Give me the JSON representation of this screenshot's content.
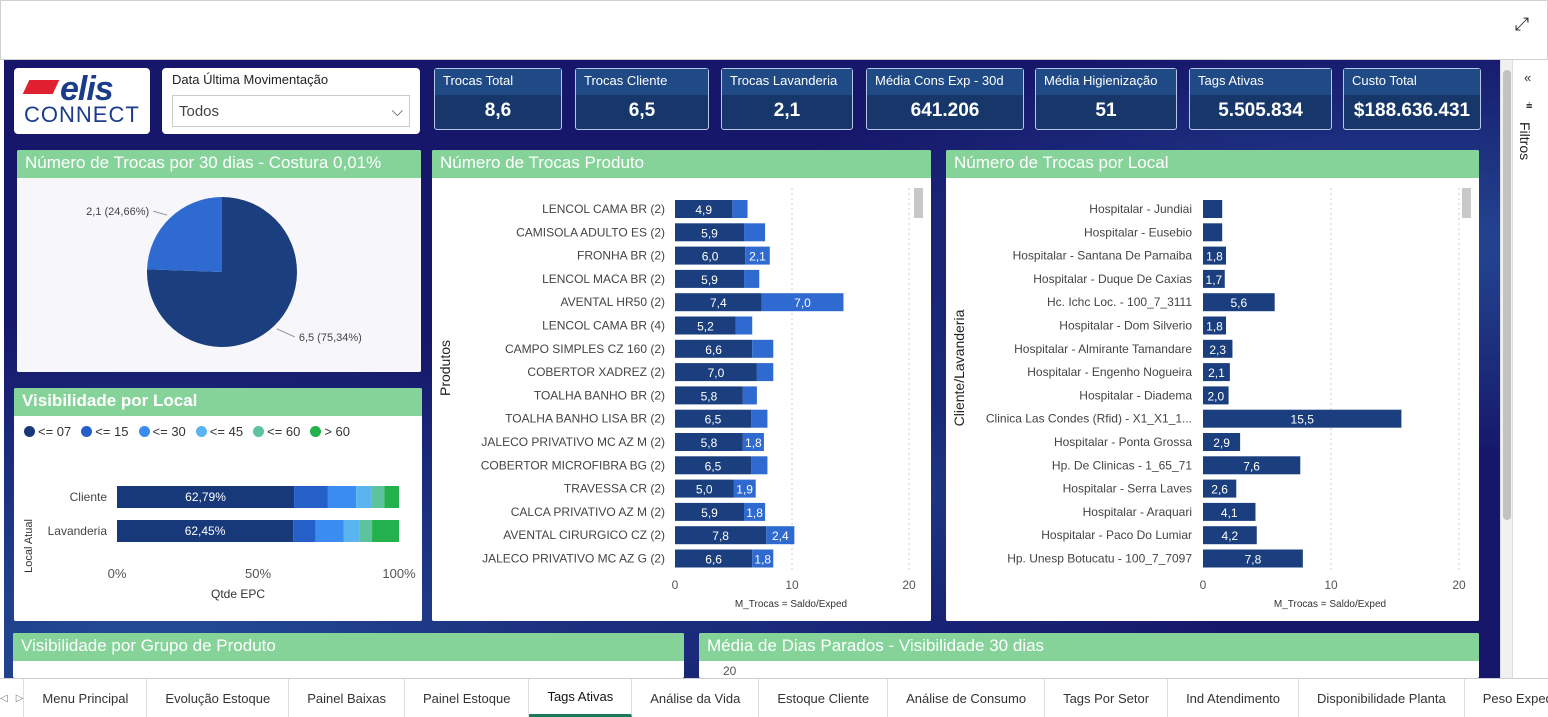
{
  "filters_label": "Filtros",
  "logo": {
    "line1": "elis",
    "line2": "CONNECT"
  },
  "slicer": {
    "title": "Data Última Movimentação",
    "value": "Todos"
  },
  "kpis": [
    {
      "label": "Trocas Total",
      "value": "8,6"
    },
    {
      "label": "Trocas Cliente",
      "value": "6,5"
    },
    {
      "label": "Trocas Lavanderia",
      "value": "2,1"
    },
    {
      "label": "Média Cons Exp - 30d",
      "value": "641.206"
    },
    {
      "label": "Média Higienização",
      "value": "51"
    },
    {
      "label": "Tags Ativas",
      "value": "5.505.834"
    },
    {
      "label": "Custo Total",
      "value": "$188.636.431"
    }
  ],
  "visuals": {
    "pie_title": "Número de Trocas por 30 dias - Costura 0,01%",
    "vis_local_title": "Visibilidade por Local",
    "produtos_title": "Número de Trocas Produto",
    "local_title": "Número de Trocas por Local",
    "grupo_title": "Visibilidade por Grupo de Produto",
    "dias_title": "Média de Dias Parados - Visibilidade 30 dias",
    "dias_axis_first": "20"
  },
  "chart_data": [
    {
      "type": "pie",
      "title": "Número de Trocas por 30 dias - Costura 0,01%",
      "slices": [
        {
          "value": 6.5,
          "label": "6,5 (75,34%)",
          "color": "#1b3f7e"
        },
        {
          "value": 2.1,
          "label": "2,1 (24,66%)",
          "color": "#2f6ad0"
        }
      ]
    },
    {
      "type": "bar",
      "orientation": "horizontal-stacked-100",
      "title": "Visibilidade por Local",
      "legend": [
        "<= 07",
        "<= 15",
        "<= 30",
        "<= 45",
        "<= 60",
        ">  60"
      ],
      "legend_colors": [
        "#17397a",
        "#2560c8",
        "#3b8cf0",
        "#5ab4f0",
        "#5cc39c",
        "#22b14c"
      ],
      "categories": [
        "Cliente",
        "Lavanderia"
      ],
      "series": [
        {
          "name": "<= 07",
          "values": [
            62.79,
            62.45
          ],
          "labels": [
            "62,79%",
            "62,45%"
          ]
        },
        {
          "name": "<= 15",
          "values": [
            12,
            8
          ]
        },
        {
          "name": "<= 30",
          "values": [
            10,
            10
          ]
        },
        {
          "name": "<= 45",
          "values": [
            5.5,
            5.5
          ]
        },
        {
          "name": "<= 60",
          "values": [
            4.5,
            4.5
          ]
        },
        {
          "name": ">  60",
          "values": [
            5.21,
            9.55
          ]
        }
      ],
      "ticks": [
        "0%",
        "50%",
        "100%"
      ],
      "xlabel": "Qtde EPC",
      "ylabel": "Local Atual"
    },
    {
      "type": "bar",
      "orientation": "horizontal-stacked",
      "title": "Número de Trocas Produto",
      "categories": [
        "LENCOL CAMA BR (2)",
        "CAMISOLA ADULTO ES (2)",
        "FRONHA BR (2)",
        "LENCOL MACA BR (2)",
        "AVENTAL HR50 (2)",
        "LENCOL CAMA BR (4)",
        "CAMPO SIMPLES CZ 160 (2)",
        "COBERTOR XADREZ (2)",
        "TOALHA BANHO BR (2)",
        "TOALHA BANHO LISA BR (2)",
        "JALECO PRIVATIVO MC AZ M (2)",
        "COBERTOR MICROFIBRA BG (2)",
        "TRAVESSA CR (2)",
        "CALCA PRIVATIVO AZ M (2)",
        "AVENTAL CIRURGICO CZ (2)",
        "JALECO PRIVATIVO MC AZ G (2)"
      ],
      "series": [
        {
          "name": "",
          "values": [
            4.9,
            5.9,
            6.0,
            5.9,
            7.4,
            5.2,
            6.6,
            7.0,
            5.8,
            6.5,
            5.8,
            6.5,
            5.0,
            5.9,
            7.8,
            6.6
          ],
          "labels": [
            "4,9",
            "5,9",
            "6,0",
            "5,9",
            "7,4",
            "5,2",
            "6,6",
            "7,0",
            "5,8",
            "6,5",
            "5,8",
            "6,5",
            "5,0",
            "5,9",
            "7,8",
            "6,6"
          ]
        },
        {
          "name": "",
          "values": [
            1.3,
            1.8,
            2.1,
            1.3,
            7.0,
            1.4,
            1.8,
            1.4,
            1.2,
            1.4,
            1.8,
            1.4,
            1.9,
            1.8,
            2.4,
            1.8
          ],
          "labels": [
            "",
            "",
            "2,1",
            "",
            "7,0",
            "",
            "",
            "",
            "",
            "",
            "1,8",
            "",
            "1,9",
            "1,8",
            "2,4",
            "1,8"
          ]
        }
      ],
      "ticks": [
        "0",
        "10",
        "20"
      ],
      "xlim": [
        0,
        20
      ],
      "xlabel": "M_Trocas = Saldo/Exped",
      "ylabel": "Produtos"
    },
    {
      "type": "bar",
      "orientation": "horizontal",
      "title": "Número de Trocas por Local",
      "categories": [
        "Hospitalar - Jundiai",
        "Hospitalar - Eusebio",
        "Hospitalar - Santana De Parnaiba",
        "Hospitalar - Duque De Caxias",
        "Hc. Ichc Loc. - 100_7_3111",
        "Hospitalar - Dom Silverio",
        "Hospitalar - Almirante Tamandare",
        "Hospitalar - Engenho Nogueira",
        "Hospitalar - Diadema",
        "Clinica Las Condes (Rfid) - X1_X1_1...",
        "Hospitalar - Ponta Grossa",
        "Hp. De Clinicas - 1_65_71",
        "Hospitalar - Serra Laves",
        "Hospitalar - Araquari",
        "Hospitalar - Paco Do Lumiar",
        "Hp. Unesp Botucatu - 100_7_7097"
      ],
      "values": [
        1.5,
        1.5,
        1.8,
        1.7,
        5.6,
        1.8,
        2.3,
        2.1,
        2.0,
        15.5,
        2.9,
        7.6,
        2.6,
        4.1,
        4.2,
        7.8
      ],
      "labels": [
        "",
        "",
        "1,8",
        "1,7",
        "5,6",
        "1,8",
        "2,3",
        "2,1",
        "2,0",
        "15,5",
        "2,9",
        "7,6",
        "2,6",
        "4,1",
        "4,2",
        "7,8"
      ],
      "ticks": [
        "0",
        "10",
        "20"
      ],
      "xlim": [
        0,
        20
      ],
      "xlabel": "M_Trocas = Saldo/Exped",
      "ylabel": "Cliente/Lavanderia"
    }
  ],
  "tabs": [
    "Menu Principal",
    "Evolução Estoque",
    "Painel Baixas",
    "Painel Estoque",
    "Tags Ativas",
    "Análise da Vida",
    "Estoque Cliente",
    "Análise de Consumo",
    "Tags Por Setor",
    "Ind Atendimento",
    "Disponibilidade Planta",
    "Peso Expedido"
  ],
  "active_tab": "Tags Ativas"
}
